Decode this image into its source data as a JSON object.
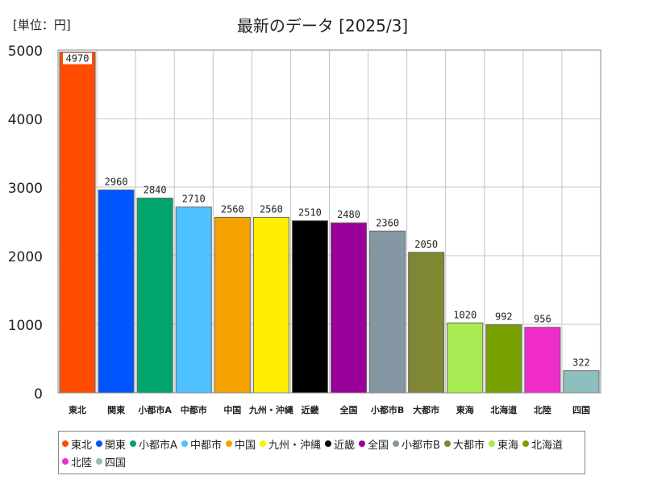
{
  "unit_label": "[単位：円]",
  "chart_data": {
    "type": "bar",
    "title": "最新のデータ [2025/3]",
    "ylim": [
      0,
      5000
    ],
    "yticks": [
      0,
      1000,
      2000,
      3000,
      4000,
      5000
    ],
    "grid": true,
    "legend_position": "bottom",
    "categories": [
      "東北",
      "関東",
      "小都市A",
      "中都市",
      "中国",
      "九州・沖縄",
      "近畿",
      "全国",
      "小都市B",
      "大都市",
      "東海",
      "北海道",
      "北陸",
      "四国"
    ],
    "values": [
      4970,
      2960,
      2840,
      2710,
      2560,
      2560,
      2510,
      2480,
      2360,
      2050,
      1020,
      992,
      956,
      322
    ],
    "colors": [
      "#ff4c00",
      "#0055ff",
      "#00a56b",
      "#4fc1ff",
      "#f5a300",
      "#ffee00",
      "#000000",
      "#990099",
      "#8597a2",
      "#808733",
      "#a6ec52",
      "#76a100",
      "#f02ccb",
      "#8dbfbf"
    ]
  }
}
